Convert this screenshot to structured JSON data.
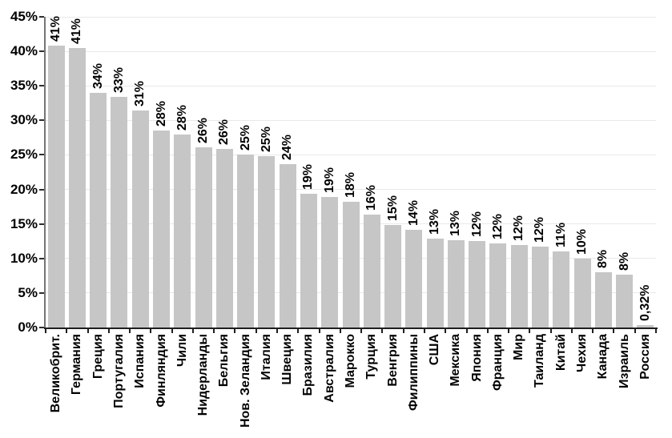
{
  "chart_data": {
    "type": "bar",
    "title": "",
    "xlabel": "",
    "ylabel": "",
    "categories": [
      "Великобрит.",
      "Германия",
      "Греция",
      "Португалия",
      "Испания",
      "Финляндия",
      "Чили",
      "Нидерланды",
      "Бельгия",
      "Нов. Зеландия",
      "Италия",
      "Швеция",
      "Бразилия",
      "Австралия",
      "Марокко",
      "Турция",
      "Венгрия",
      "Филиппины",
      "США",
      "Мексика",
      "Япония",
      "Франция",
      "Мир",
      "Таиланд",
      "Китай",
      "Чехия",
      "Канада",
      "Израиль",
      "Россия"
    ],
    "values": [
      40.8,
      40.5,
      34.0,
      33.4,
      31.4,
      28.5,
      28.0,
      26.1,
      25.9,
      25.0,
      24.8,
      23.7,
      19.4,
      18.9,
      18.2,
      16.4,
      14.8,
      14.2,
      12.9,
      12.6,
      12.5,
      12.2,
      11.9,
      11.7,
      11.0,
      10.0,
      8.0,
      7.7,
      0.32
    ],
    "value_labels": [
      "41%",
      "41%",
      "34%",
      "33%",
      "31%",
      "28%",
      "28%",
      "26%",
      "26%",
      "25%",
      "25%",
      "24%",
      "19%",
      "19%",
      "18%",
      "16%",
      "15%",
      "14%",
      "13%",
      "13%",
      "12%",
      "12%",
      "12%",
      "12%",
      "11%",
      "10%",
      "8%",
      "8%",
      "0,32%"
    ],
    "y_ticks": [
      "0%",
      "5%",
      "10%",
      "15%",
      "20%",
      "25%",
      "30%",
      "35%",
      "40%",
      "45%"
    ],
    "ylim": [
      0,
      45
    ],
    "grid": true,
    "legend_position": "none",
    "bar_color": "#c6c6c6",
    "grid_color": "#e9e9e9",
    "y_axis_color": "#757575",
    "x_axis_color": "#1f1f1f",
    "tick_color": "#2e2e2e",
    "text_color": "#000000"
  }
}
